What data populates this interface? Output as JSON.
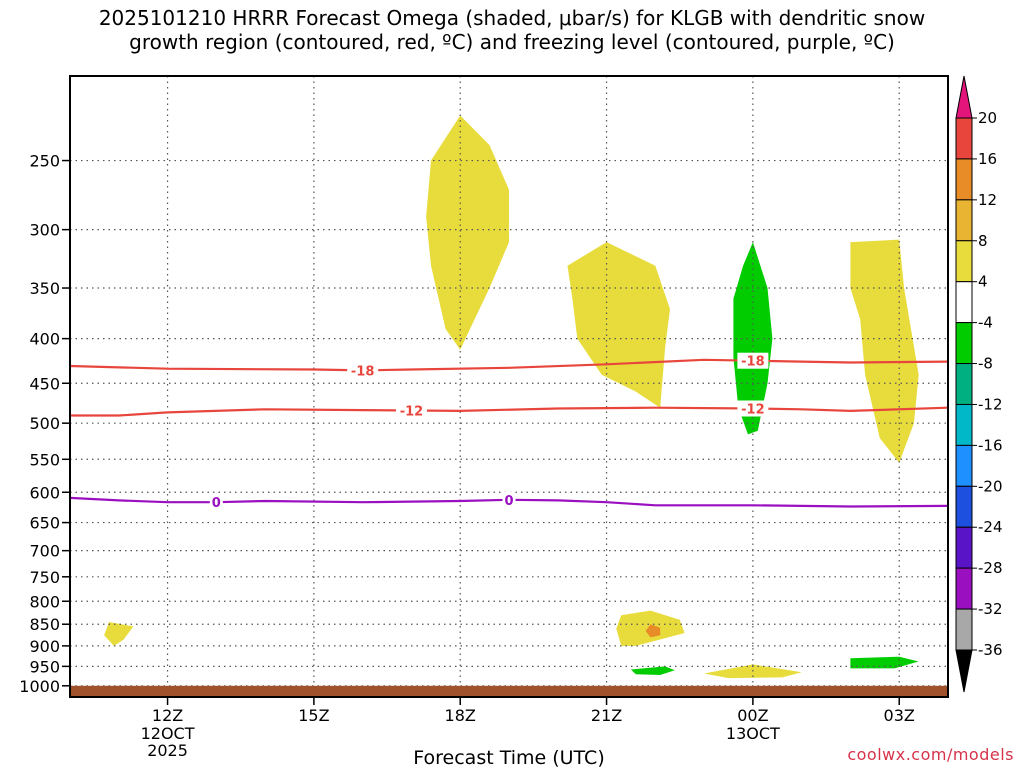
{
  "title": {
    "line1": "2025101210 HRRR Forecast Omega (shaded, μbar/s) for KLGB with dendritic snow",
    "line2": "growth region (contoured, red, ºC) and freezing level (contoured, purple, ºC)"
  },
  "credit": "coolwx.com/models",
  "chart_data": {
    "type": "time-height cross section",
    "xlabel": "Forecast Time (UTC)",
    "ylabel": "",
    "x_ticks": [
      {
        "label": "12Z",
        "sub": [
          "12OCT",
          "2025"
        ],
        "hour": 12
      },
      {
        "label": "15Z",
        "sub": [],
        "hour": 15
      },
      {
        "label": "18Z",
        "sub": [],
        "hour": 18
      },
      {
        "label": "21Z",
        "sub": [],
        "hour": 21
      },
      {
        "label": "00Z",
        "sub": [
          "13OCT"
        ],
        "hour": 24
      },
      {
        "label": "03Z",
        "sub": [],
        "hour": 27
      }
    ],
    "xlim_hours": [
      10,
      28
    ],
    "y_ticks": [
      250,
      300,
      350,
      400,
      450,
      500,
      550,
      600,
      650,
      700,
      750,
      800,
      850,
      900,
      950,
      1000
    ],
    "ylim_hPa": [
      200,
      1030
    ],
    "y_scale": "log-pressure",
    "grid": true,
    "ground_level_hPa": 1000,
    "contours": [
      {
        "label": "-18",
        "color": "#e8463c",
        "points": [
          [
            10,
            430
          ],
          [
            12,
            433
          ],
          [
            15,
            434
          ],
          [
            16,
            435
          ],
          [
            17,
            434
          ],
          [
            19,
            432
          ],
          [
            21,
            428
          ],
          [
            23,
            423
          ],
          [
            24,
            424
          ],
          [
            25,
            425
          ],
          [
            26,
            426
          ],
          [
            28,
            425
          ]
        ],
        "label_at": [
          16.0,
          24.0
        ]
      },
      {
        "label": "-12",
        "color": "#e8463c",
        "points": [
          [
            10,
            490
          ],
          [
            11,
            490
          ],
          [
            12,
            486
          ],
          [
            14,
            482
          ],
          [
            16,
            483
          ],
          [
            18,
            484
          ],
          [
            20,
            481
          ],
          [
            22,
            480
          ],
          [
            24,
            481
          ],
          [
            25,
            482
          ],
          [
            26,
            484
          ],
          [
            28,
            480
          ]
        ],
        "label_at": [
          17.0,
          24.0
        ]
      },
      {
        "label": "0",
        "color": "#9a0fc0",
        "points": [
          [
            10,
            609
          ],
          [
            11,
            613
          ],
          [
            12,
            616
          ],
          [
            13,
            616
          ],
          [
            14,
            614
          ],
          [
            16,
            616
          ],
          [
            18,
            614
          ],
          [
            19,
            612
          ],
          [
            20,
            613
          ],
          [
            21,
            616
          ],
          [
            22,
            621
          ],
          [
            24,
            621
          ],
          [
            26,
            623
          ],
          [
            28,
            622
          ]
        ],
        "label_at": [
          13.0,
          19.0
        ]
      }
    ],
    "omega_regions": [
      {
        "color": "#e8dc3c",
        "points": [
          [
            18.0,
            222
          ],
          [
            18.6,
            240
          ],
          [
            19.0,
            270
          ],
          [
            19.0,
            310
          ],
          [
            18.6,
            350
          ],
          [
            18.2,
            390
          ],
          [
            18.0,
            412
          ],
          [
            17.7,
            390
          ],
          [
            17.4,
            330
          ],
          [
            17.3,
            290
          ],
          [
            17.4,
            250
          ]
        ]
      },
      {
        "color": "#e8dc3c",
        "points": [
          [
            20.2,
            330
          ],
          [
            21.0,
            310
          ],
          [
            22.0,
            330
          ],
          [
            22.3,
            370
          ],
          [
            22.2,
            410
          ],
          [
            22.1,
            480
          ],
          [
            21.6,
            460
          ],
          [
            20.9,
            440
          ],
          [
            20.4,
            400
          ],
          [
            20.3,
            360
          ]
        ]
      },
      {
        "color": "#e8dc3c",
        "points": [
          [
            26.0,
            310
          ],
          [
            27.0,
            308
          ],
          [
            27.1,
            350
          ],
          [
            27.4,
            440
          ],
          [
            27.3,
            500
          ],
          [
            27.0,
            555
          ],
          [
            26.6,
            520
          ],
          [
            26.3,
            440
          ],
          [
            26.2,
            380
          ],
          [
            26.0,
            350
          ]
        ]
      },
      {
        "color": "#e8dc3c",
        "points": [
          [
            10.8,
            845
          ],
          [
            11.3,
            855
          ],
          [
            11.1,
            885
          ],
          [
            10.9,
            900
          ],
          [
            10.7,
            875
          ]
        ]
      },
      {
        "color": "#e8dc3c",
        "points": [
          [
            21.3,
            830
          ],
          [
            21.9,
            820
          ],
          [
            22.5,
            840
          ],
          [
            22.6,
            870
          ],
          [
            22.1,
            885
          ],
          [
            21.6,
            900
          ],
          [
            21.3,
            900
          ],
          [
            21.2,
            860
          ]
        ]
      },
      {
        "color": "#e8dc3c",
        "points": [
          [
            23.0,
            968
          ],
          [
            24.0,
            945
          ],
          [
            25.0,
            965
          ],
          [
            24.6,
            978
          ],
          [
            23.5,
            980
          ]
        ]
      },
      {
        "color": "#e88c28",
        "points": [
          [
            21.9,
            850
          ],
          [
            22.1,
            858
          ],
          [
            22.1,
            875
          ],
          [
            21.9,
            880
          ],
          [
            21.8,
            865
          ]
        ]
      },
      {
        "color": "#00cc00",
        "points": [
          [
            24.0,
            310
          ],
          [
            24.3,
            350
          ],
          [
            24.4,
            400
          ],
          [
            24.3,
            450
          ],
          [
            24.1,
            510
          ],
          [
            23.9,
            515
          ],
          [
            23.7,
            480
          ],
          [
            23.6,
            420
          ],
          [
            23.6,
            360
          ],
          [
            23.8,
            330
          ]
        ]
      },
      {
        "color": "#00cc00",
        "points": [
          [
            21.5,
            958
          ],
          [
            22.2,
            950
          ],
          [
            22.4,
            960
          ],
          [
            22.1,
            972
          ],
          [
            21.6,
            970
          ]
        ]
      },
      {
        "color": "#00cc00",
        "points": [
          [
            26.0,
            930
          ],
          [
            27.0,
            926
          ],
          [
            27.4,
            938
          ],
          [
            26.9,
            955
          ],
          [
            26.0,
            955
          ]
        ]
      }
    ],
    "colorbar": {
      "levels": [
        "20",
        "16",
        "12",
        "8",
        "4",
        "-4",
        "-8",
        "-12",
        "-16",
        "-20",
        "-24",
        "-28",
        "-32",
        "-36"
      ],
      "colors": [
        "#e4157a",
        "#e8463c",
        "#e88c28",
        "#e8b432",
        "#e8dc3c",
        "#ffffff",
        "#00cc00",
        "#00b080",
        "#00b8c8",
        "#1e90ff",
        "#1e50e0",
        "#5a14c8",
        "#9a0fc0",
        "#a8a8a8",
        "#000000"
      ]
    }
  }
}
